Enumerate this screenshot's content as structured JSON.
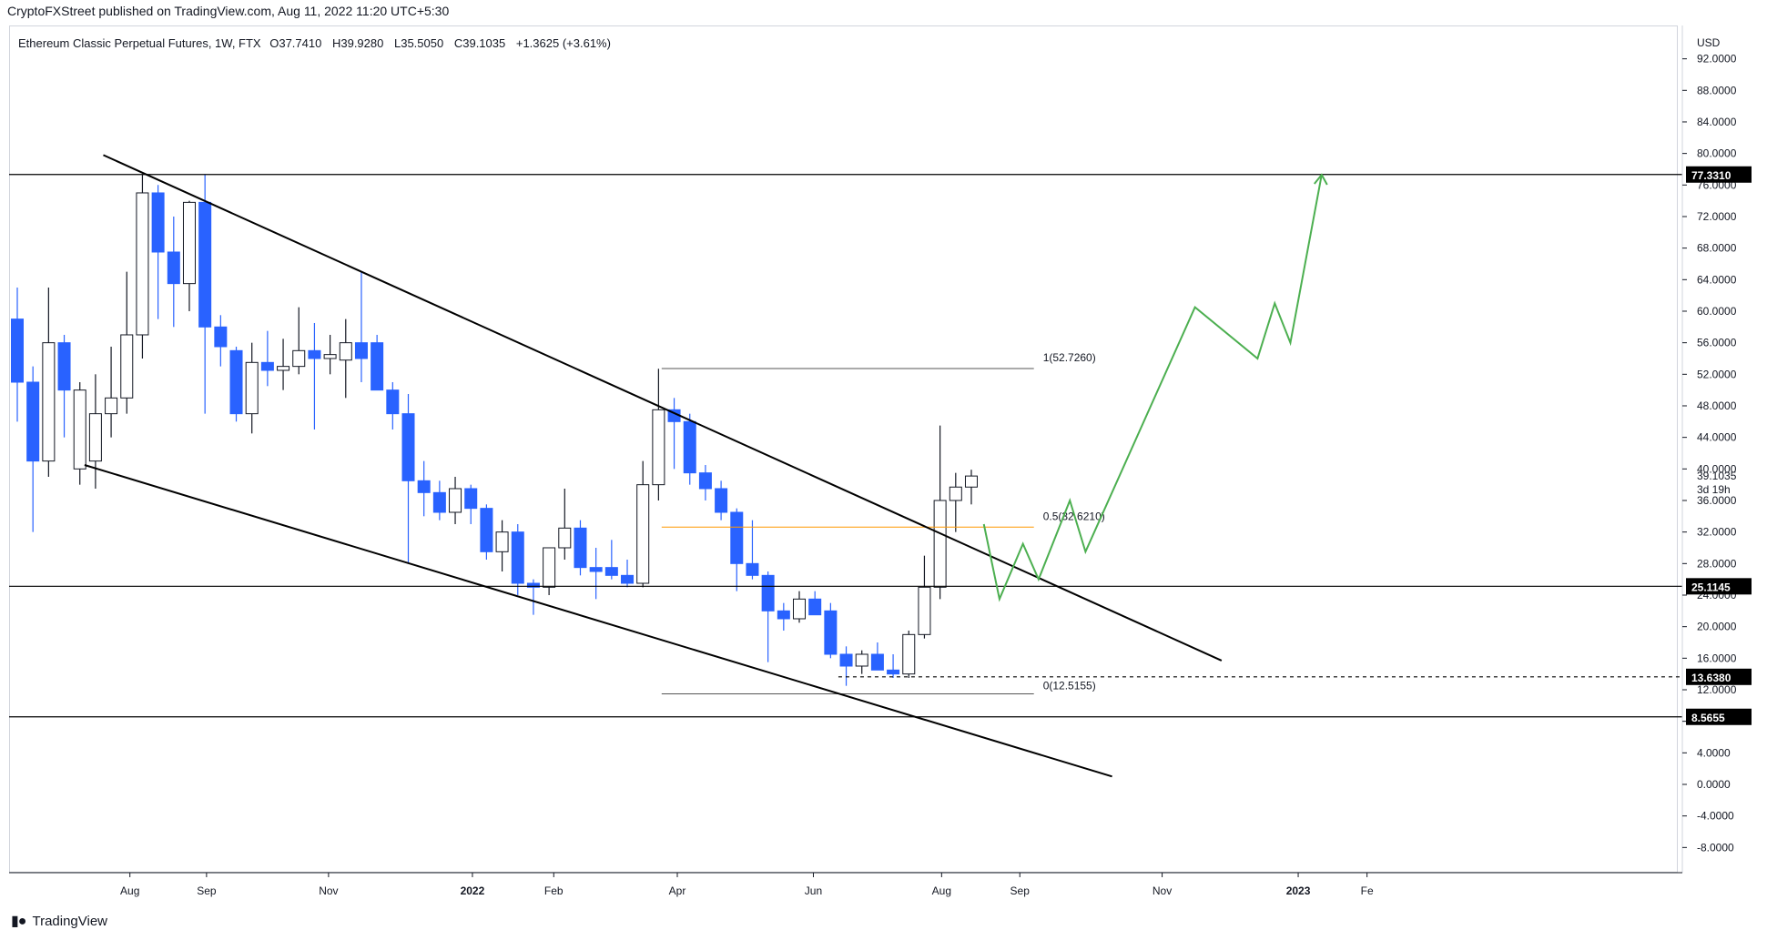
{
  "header": {
    "publisher": "CryptoFXStreet published on TradingView.com, Aug 11, 2022 11:20 UTC+5:30"
  },
  "legend": {
    "symbol": "Ethereum Classic Perpetual Futures, 1W, FTX",
    "open": "O37.7410",
    "high": "H39.9280",
    "low": "L35.5050",
    "close": "C39.1035",
    "change": "+1.3625 (+3.61%)"
  },
  "footer": {
    "brand": "TradingView",
    "logo": "tradingview-logo-icon"
  },
  "colors": {
    "up": "#ffffff",
    "down": "#2962ff",
    "wick_down": "#2962ff",
    "wick_up": "#131722",
    "channel": "#000000",
    "projection": "#4caf50",
    "fib_mid": "#ff9800"
  },
  "chart_data": {
    "type": "candlestick",
    "title": "Ethereum Classic Perpetual Futures, 1W, FTX",
    "currency": "USD",
    "ylim": [
      -12,
      96
    ],
    "y_ticks": [
      "92.0000",
      "88.0000",
      "84.0000",
      "80.0000",
      "76.0000",
      "72.0000",
      "68.0000",
      "64.0000",
      "60.0000",
      "56.0000",
      "52.0000",
      "48.0000",
      "44.0000",
      "40.0000",
      "36.0000",
      "32.0000",
      "28.0000",
      "24.0000",
      "20.0000",
      "16.0000",
      "12.0000",
      "8.0000",
      "4.0000",
      "0.0000",
      "-4.0000",
      "-8.0000"
    ],
    "x_ticks": [
      "Aug",
      "Sep",
      "Nov",
      "2022",
      "Feb",
      "Apr",
      "Jun",
      "Aug",
      "Sep",
      "Nov",
      "2023",
      "Fe"
    ],
    "bold_x_ticks": [
      "2022",
      "2023"
    ],
    "candles": [
      {
        "o": 59.0,
        "h": 63.0,
        "l": 46.0,
        "c": 51.0
      },
      {
        "o": 51.0,
        "h": 53.0,
        "l": 32.0,
        "c": 41.0
      },
      {
        "o": 41.0,
        "h": 63.0,
        "l": 39.0,
        "c": 56.0
      },
      {
        "o": 56.0,
        "h": 57.0,
        "l": 44.0,
        "c": 50.0
      },
      {
        "o": 40.0,
        "h": 51.0,
        "l": 38.0,
        "c": 50.0
      },
      {
        "o": 41.0,
        "h": 52.0,
        "l": 37.5,
        "c": 47.0
      },
      {
        "o": 47.0,
        "h": 55.5,
        "l": 44.0,
        "c": 49.0
      },
      {
        "o": 49.0,
        "h": 65.0,
        "l": 47.0,
        "c": 57.0
      },
      {
        "o": 57.0,
        "h": 77.3,
        "l": 54.0,
        "c": 75.0
      },
      {
        "o": 75.0,
        "h": 76.0,
        "l": 59.0,
        "c": 67.5
      },
      {
        "o": 67.5,
        "h": 72.0,
        "l": 58.0,
        "c": 63.5
      },
      {
        "o": 63.5,
        "h": 74.0,
        "l": 60.0,
        "c": 73.8
      },
      {
        "o": 73.8,
        "h": 77.3,
        "l": 47.0,
        "c": 58.0
      },
      {
        "o": 58.0,
        "h": 59.5,
        "l": 53.0,
        "c": 55.5
      },
      {
        "o": 55.0,
        "h": 55.5,
        "l": 46.0,
        "c": 47.0
      },
      {
        "o": 47.0,
        "h": 56.0,
        "l": 44.5,
        "c": 53.5
      },
      {
        "o": 53.5,
        "h": 57.5,
        "l": 50.5,
        "c": 52.5
      },
      {
        "o": 52.5,
        "h": 56.5,
        "l": 50.0,
        "c": 53.0
      },
      {
        "o": 53.0,
        "h": 60.5,
        "l": 52.0,
        "c": 55.0
      },
      {
        "o": 55.0,
        "h": 58.5,
        "l": 45.0,
        "c": 54.0
      },
      {
        "o": 54.0,
        "h": 57.0,
        "l": 52.0,
        "c": 54.5
      },
      {
        "o": 53.8,
        "h": 59.0,
        "l": 49.0,
        "c": 56.0
      },
      {
        "o": 56.0,
        "h": 65.0,
        "l": 51.0,
        "c": 54.0
      },
      {
        "o": 56.0,
        "h": 57.0,
        "l": 50.0,
        "c": 50.0
      },
      {
        "o": 50.0,
        "h": 51.0,
        "l": 45.0,
        "c": 47.0
      },
      {
        "o": 47.0,
        "h": 49.5,
        "l": 28.0,
        "c": 38.5
      },
      {
        "o": 38.5,
        "h": 41.0,
        "l": 34.0,
        "c": 37.0
      },
      {
        "o": 37.0,
        "h": 38.5,
        "l": 33.5,
        "c": 34.5
      },
      {
        "o": 34.5,
        "h": 39.0,
        "l": 33.0,
        "c": 37.5
      },
      {
        "o": 37.5,
        "h": 38.0,
        "l": 33.0,
        "c": 35.0
      },
      {
        "o": 35.0,
        "h": 35.5,
        "l": 28.5,
        "c": 29.5
      },
      {
        "o": 29.5,
        "h": 33.5,
        "l": 27.0,
        "c": 32.0
      },
      {
        "o": 32.0,
        "h": 33.0,
        "l": 24.0,
        "c": 25.5
      },
      {
        "o": 25.5,
        "h": 26.0,
        "l": 21.5,
        "c": 25.0
      },
      {
        "o": 25.0,
        "h": 30.0,
        "l": 24.0,
        "c": 30.0
      },
      {
        "o": 30.0,
        "h": 37.5,
        "l": 28.5,
        "c": 32.5
      },
      {
        "o": 32.5,
        "h": 33.5,
        "l": 26.5,
        "c": 27.5
      },
      {
        "o": 27.5,
        "h": 30.0,
        "l": 23.5,
        "c": 27.0
      },
      {
        "o": 27.5,
        "h": 31.0,
        "l": 26.0,
        "c": 26.5
      },
      {
        "o": 26.5,
        "h": 28.5,
        "l": 25.0,
        "c": 25.5
      },
      {
        "o": 25.5,
        "h": 41.0,
        "l": 25.0,
        "c": 38.0
      },
      {
        "o": 38.0,
        "h": 52.7,
        "l": 36.0,
        "c": 47.5
      },
      {
        "o": 47.5,
        "h": 49.0,
        "l": 40.0,
        "c": 46.0
      },
      {
        "o": 46.0,
        "h": 47.0,
        "l": 38.0,
        "c": 39.5
      },
      {
        "o": 39.5,
        "h": 40.5,
        "l": 36.0,
        "c": 37.5
      },
      {
        "o": 37.5,
        "h": 38.5,
        "l": 33.5,
        "c": 34.5
      },
      {
        "o": 34.5,
        "h": 35.0,
        "l": 24.5,
        "c": 28.0
      },
      {
        "o": 28.0,
        "h": 33.5,
        "l": 26.0,
        "c": 26.5
      },
      {
        "o": 26.5,
        "h": 27.0,
        "l": 15.5,
        "c": 22.0
      },
      {
        "o": 22.0,
        "h": 23.0,
        "l": 19.5,
        "c": 21.0
      },
      {
        "o": 21.0,
        "h": 24.5,
        "l": 20.5,
        "c": 23.5
      },
      {
        "o": 23.5,
        "h": 24.5,
        "l": 21.5,
        "c": 21.5
      },
      {
        "o": 22.0,
        "h": 23.0,
        "l": 16.0,
        "c": 16.5
      },
      {
        "o": 16.5,
        "h": 17.5,
        "l": 12.5,
        "c": 15.0
      },
      {
        "o": 15.0,
        "h": 17.0,
        "l": 14.0,
        "c": 16.5
      },
      {
        "o": 16.5,
        "h": 18.0,
        "l": 14.5,
        "c": 14.5
      },
      {
        "o": 14.5,
        "h": 16.5,
        "l": 13.5,
        "c": 14.0
      },
      {
        "o": 14.0,
        "h": 19.5,
        "l": 13.5,
        "c": 19.0
      },
      {
        "o": 19.0,
        "h": 29.0,
        "l": 18.5,
        "c": 25.0
      },
      {
        "o": 25.0,
        "h": 45.5,
        "l": 23.5,
        "c": 36.0
      },
      {
        "o": 36.0,
        "h": 39.5,
        "l": 32.0,
        "c": 37.7
      },
      {
        "o": 37.7,
        "h": 39.9,
        "l": 35.5,
        "c": 39.1
      }
    ],
    "horizontal_levels": [
      {
        "price": 77.331,
        "label": "77.3310",
        "style": "solid"
      },
      {
        "price": 25.1145,
        "label": "25.1145",
        "style": "solid"
      },
      {
        "price": 13.638,
        "label": "13.6380",
        "style": "dashed"
      },
      {
        "price": 8.5655,
        "label": "8.5655",
        "style": "solid"
      }
    ],
    "last_price": {
      "label": "39.1035",
      "countdown": "3d 19h"
    },
    "fib": [
      {
        "level": "1",
        "price": 52.726,
        "label": "1(52.7260)"
      },
      {
        "level": "0.5",
        "price": 32.621,
        "label": "0.5(32.6210)"
      },
      {
        "level": "0",
        "price": 12.5155,
        "label": "0(12.5155)"
      }
    ],
    "channel": {
      "upper": [
        {
          "x_index": 5.5,
          "y": 79.8
        },
        {
          "x_index": 77.0,
          "y": 15.7
        }
      ],
      "lower": [
        {
          "x_index": 4.3,
          "y": 40.5
        },
        {
          "x_index": 70.0,
          "y": 1.0
        }
      ]
    },
    "projection_path": [
      {
        "x_index": 61.8,
        "y": 33.0
      },
      {
        "x_index": 62.8,
        "y": 23.5
      },
      {
        "x_index": 64.3,
        "y": 30.5
      },
      {
        "x_index": 65.3,
        "y": 26.0
      },
      {
        "x_index": 67.3,
        "y": 36.0
      },
      {
        "x_index": 68.3,
        "y": 29.5
      },
      {
        "x_index": 75.3,
        "y": 60.5
      },
      {
        "x_index": 79.3,
        "y": 54.0
      },
      {
        "x_index": 80.4,
        "y": 61.0
      },
      {
        "x_index": 81.4,
        "y": 56.0
      },
      {
        "x_index": 83.4,
        "y": 77.3
      }
    ]
  }
}
